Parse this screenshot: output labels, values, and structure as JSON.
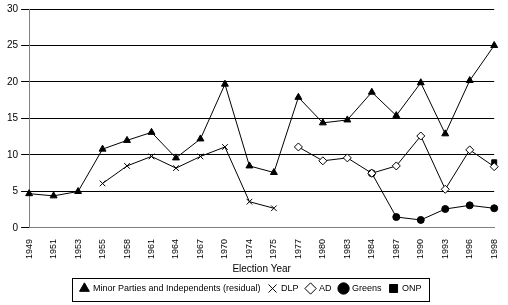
{
  "chart_data": {
    "type": "line",
    "x_label": "Election Year",
    "categories": [
      "1949",
      "1951",
      "1953",
      "1955",
      "1958",
      "1961",
      "1964",
      "1967",
      "1970",
      "1974",
      "1975",
      "1977",
      "1980",
      "1983",
      "1984",
      "1987",
      "1990",
      "1993",
      "1996",
      "1998"
    ],
    "series": [
      {
        "name": "Minor Parties and Independents (residual)",
        "color": "#000000",
        "marker": "triangle",
        "values": [
          4.7,
          4.4,
          5.0,
          10.8,
          12.0,
          13.1,
          9.6,
          12.2,
          19.7,
          8.5,
          7.6,
          17.9,
          14.4,
          14.8,
          18.6,
          15.4,
          19.9,
          12.9,
          20.2,
          25.0
        ]
      },
      {
        "name": "DLP",
        "color": "#000000",
        "marker": "cross",
        "values": [
          null,
          null,
          null,
          6.1,
          8.5,
          9.8,
          8.2,
          9.8,
          11.1,
          3.6,
          2.7,
          null,
          null,
          null,
          null,
          null,
          null,
          null,
          null,
          null
        ]
      },
      {
        "name": "AD",
        "color": "#000000",
        "marker": "hollow_diamond",
        "values": [
          null,
          null,
          null,
          null,
          null,
          null,
          null,
          null,
          null,
          null,
          null,
          11.1,
          9.2,
          9.6,
          7.5,
          8.5,
          12.6,
          5.3,
          10.7,
          8.4
        ]
      },
      {
        "name": "Greens",
        "color": "#000000",
        "marker": "circle",
        "values": [
          null,
          null,
          null,
          null,
          null,
          null,
          null,
          null,
          null,
          null,
          null,
          null,
          null,
          null,
          7.5,
          1.5,
          1.1,
          2.6,
          3.1,
          2.7
        ]
      },
      {
        "name": "ONP",
        "color": "#000000",
        "marker": "square",
        "values": [
          null,
          null,
          null,
          null,
          null,
          null,
          null,
          null,
          null,
          null,
          null,
          null,
          null,
          null,
          null,
          null,
          null,
          null,
          null,
          9.0
        ]
      }
    ],
    "ylim": [
      0,
      30
    ],
    "yticks": [
      0,
      5,
      10,
      15,
      20,
      25,
      30
    ],
    "grid": true,
    "legend": "bottom"
  }
}
